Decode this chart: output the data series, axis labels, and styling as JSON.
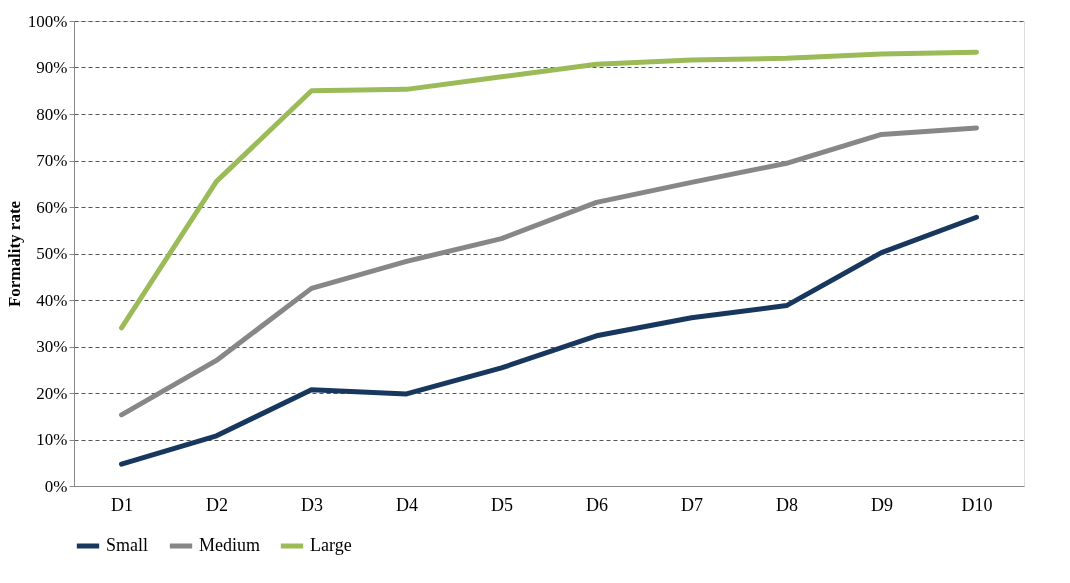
{
  "chart_data": {
    "type": "line",
    "ylabel": "Formality rate",
    "categories": [
      "D1",
      "D2",
      "D3",
      "D4",
      "D5",
      "D6",
      "D7",
      "D8",
      "D9",
      "D10"
    ],
    "series": [
      {
        "name": "Small",
        "color": "#17375e",
        "values": [
          4.7,
          10.8,
          20.7,
          19.8,
          25.4,
          32.3,
          36.2,
          38.8,
          50.2,
          57.8
        ]
      },
      {
        "name": "Medium",
        "color": "#878787",
        "values": [
          15.3,
          27,
          42.5,
          48.3,
          53.2,
          61,
          65.3,
          69.4,
          75.6,
          77
        ]
      },
      {
        "name": "Large",
        "color": "#9bbb59",
        "values": [
          34,
          65.5,
          85,
          85.3,
          88,
          90.7,
          91.6,
          92,
          92.9,
          93.3
        ]
      }
    ],
    "ylim": [
      0,
      100
    ],
    "yticks": [
      {
        "value": 0,
        "label": "0%"
      },
      {
        "value": 10,
        "label": "10%"
      },
      {
        "value": 20,
        "label": "20%"
      },
      {
        "value": 30,
        "label": "30%"
      },
      {
        "value": 40,
        "label": "40%"
      },
      {
        "value": 50,
        "label": "50%"
      },
      {
        "value": 60,
        "label": "60%"
      },
      {
        "value": 70,
        "label": "70%"
      },
      {
        "value": 80,
        "label": "80%"
      },
      {
        "value": 90,
        "label": "90%"
      },
      {
        "value": 100,
        "label": "100%"
      }
    ],
    "grid": "y",
    "legend": "bottom"
  }
}
